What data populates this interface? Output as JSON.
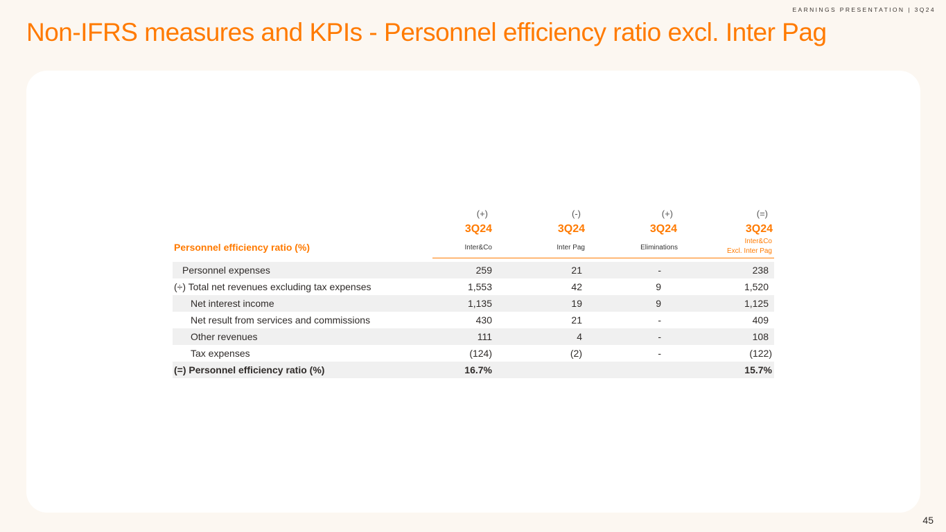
{
  "header": {
    "tag": "EARNINGS PRESENTATION | 3Q24"
  },
  "title": "Non-IFRS measures and KPIs - Personnel efficiency ratio excl. Inter Pag",
  "page_number": "45",
  "table": {
    "signs": [
      "(+)",
      "(-)",
      "(+)",
      "(=)"
    ],
    "periods": [
      "3Q24",
      "3Q24",
      "3Q24",
      "3Q24"
    ],
    "section_title": "Personnel efficiency ratio  (%)",
    "entities": [
      "Inter&Co",
      "Inter Pag",
      "Eliminations"
    ],
    "entity_last_line1": "Inter&Co",
    "entity_last_line2": "Excl. Inter Pag",
    "rows": [
      {
        "label": "Personnel expenses",
        "values": [
          "259",
          "21",
          "-",
          "238"
        ]
      },
      {
        "label": "(÷) Total net revenues excluding tax expenses",
        "values": [
          "1,553",
          "42",
          "9",
          "1,520"
        ]
      },
      {
        "label": "Net interest income",
        "values": [
          "1,135",
          "19",
          "9",
          "1,125"
        ]
      },
      {
        "label": "Net result from services and commissions",
        "values": [
          "430",
          "21",
          "-",
          "409"
        ]
      },
      {
        "label": "Other revenues",
        "values": [
          "111",
          "4",
          "-",
          "108"
        ]
      },
      {
        "label": "Tax expenses",
        "values": [
          "(124)",
          "(2)",
          "-",
          "(122)"
        ]
      },
      {
        "label": "(=) Personnel efficiency ratio (%)",
        "values": [
          "16.7%",
          "",
          "",
          "15.7%"
        ]
      }
    ]
  }
}
